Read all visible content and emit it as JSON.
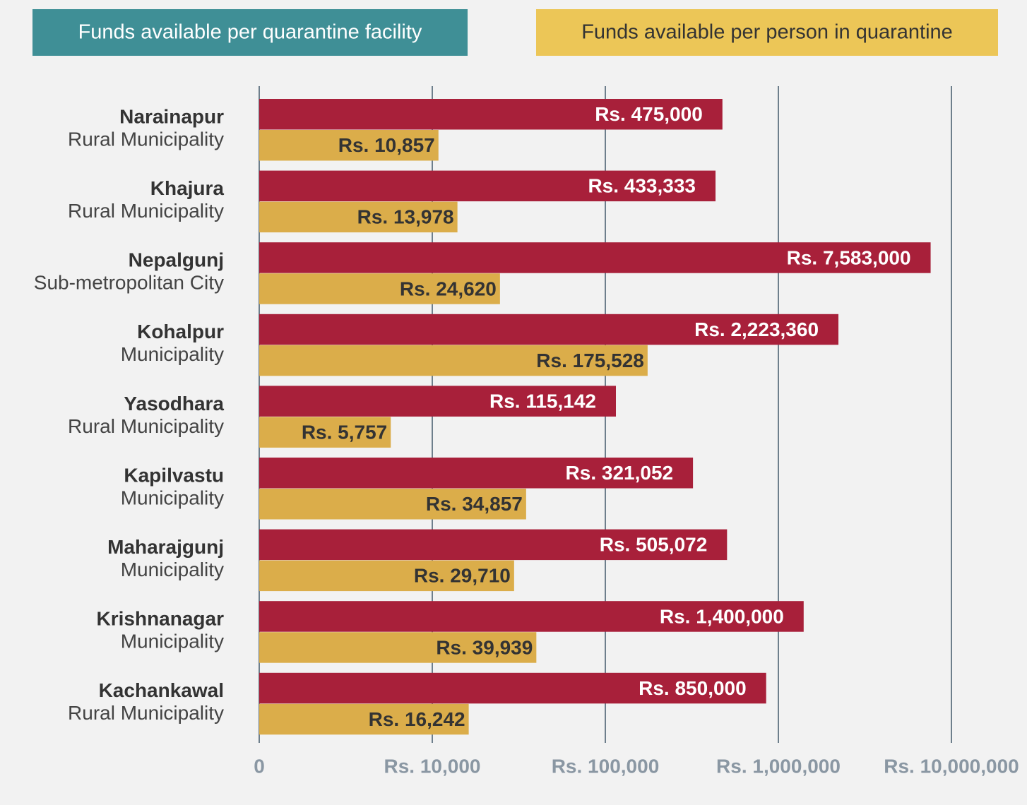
{
  "chart_data": {
    "type": "bar",
    "orientation": "horizontal",
    "log_scale": true,
    "categories": [
      [
        "Narainapur",
        "Rural Municipality"
      ],
      [
        "Khajura",
        "Rural Municipality"
      ],
      [
        "Nepalgunj",
        "Sub-metropolitan City"
      ],
      [
        "Kohalpur",
        "Municipality"
      ],
      [
        "Yasodhara",
        "Rural Municipality"
      ],
      [
        "Kapilvastu",
        "Municipality"
      ],
      [
        "Maharajgunj",
        "Municipality"
      ],
      [
        "Krishnanagar",
        "Municipality"
      ],
      [
        "Kachankawal",
        "Rural Municipality"
      ]
    ],
    "series": [
      {
        "name": "Funds available per quarantine facility",
        "color": "#a8203a",
        "legend_color": "#3f8f96",
        "values": [
          475000,
          433333,
          7583000,
          2223360,
          115142,
          321052,
          505072,
          1400000,
          850000
        ],
        "value_labels": [
          "Rs. 475,000",
          "Rs. 433,333",
          "Rs. 7,583,000",
          "Rs. 2,223,360",
          "Rs. 115,142",
          "Rs. 321,052",
          "Rs. 505,072",
          "Rs. 1,400,000",
          "Rs. 850,000"
        ]
      },
      {
        "name": "Funds available per person in quarantine",
        "color": "#dbad4a",
        "legend_color": "#ecc657",
        "values": [
          10857,
          13978,
          24620,
          175528,
          5757,
          34857,
          29710,
          39939,
          16242
        ],
        "value_labels": [
          "Rs. 10,857",
          "Rs. 13,978",
          "Rs. 24,620",
          "Rs. 175,528",
          "Rs. 5,757",
          "Rs. 34,857",
          "Rs. 29,710",
          "Rs. 39,939",
          "Rs. 16,242"
        ]
      }
    ],
    "xlim": [
      1000,
      10000000
    ],
    "xticks": [
      0,
      {
        "value": 10000,
        "label": "Rs. 10,000"
      },
      {
        "value": 100000,
        "label": "Rs. 100,000"
      },
      {
        "value": 1000000,
        "label": "Rs. 1,000,000"
      },
      {
        "value": 10000000,
        "label": "Rs. 10,000,000"
      }
    ],
    "grid": true
  }
}
